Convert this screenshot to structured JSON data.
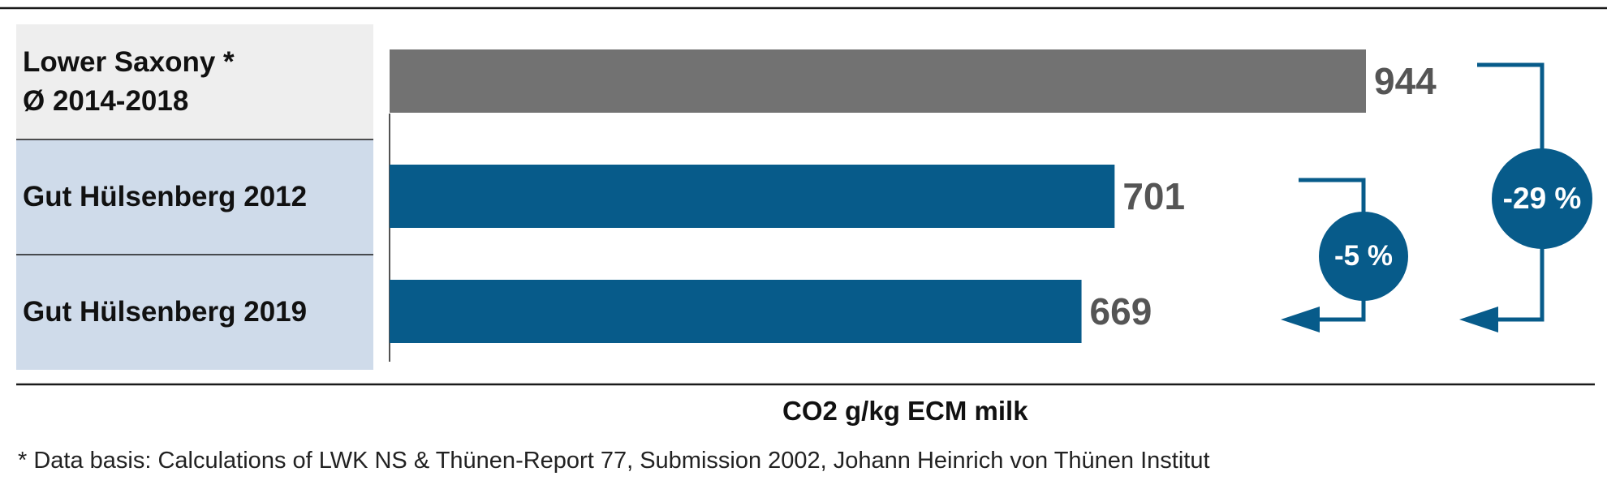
{
  "chart_data": {
    "type": "bar",
    "orientation": "horizontal",
    "categories": [
      "Lower Saxony * Ø 2014-2018",
      "Gut Hülsenberg 2012",
      "Gut Hülsenberg 2019"
    ],
    "category_lines": [
      [
        "Lower Saxony *",
        "Ø 2014-2018"
      ],
      [
        "Gut Hülsenberg 2012"
      ],
      [
        "Gut Hülsenberg 2019"
      ]
    ],
    "values": [
      944,
      701,
      669
    ],
    "value_labels": [
      "944",
      "701",
      "669"
    ],
    "bar_colors": [
      "#727272",
      "#075b8a",
      "#075b8a"
    ],
    "row_colors": [
      "#eeeeee",
      "#cfdbea",
      "#cfdbea"
    ],
    "xlabel": "CO2 g/kg ECM milk",
    "xlim": [
      0,
      944
    ],
    "grid": false,
    "annotations": [
      {
        "text": "-5 %",
        "from": "Gut Hülsenberg 2012",
        "to": "Gut Hülsenberg 2019"
      },
      {
        "text": "-29 %",
        "from": "Lower Saxony * Ø 2014-2018",
        "to": "Gut Hülsenberg 2019"
      }
    ],
    "footnote": "* Data basis: Calculations of LWK NS & Thünen-Report 77, Submission 2002, Johann Heinrich von Thünen Institut"
  },
  "colors": {
    "accent": "#075b8a",
    "grey_bar": "#727272",
    "value_text": "#555555"
  }
}
